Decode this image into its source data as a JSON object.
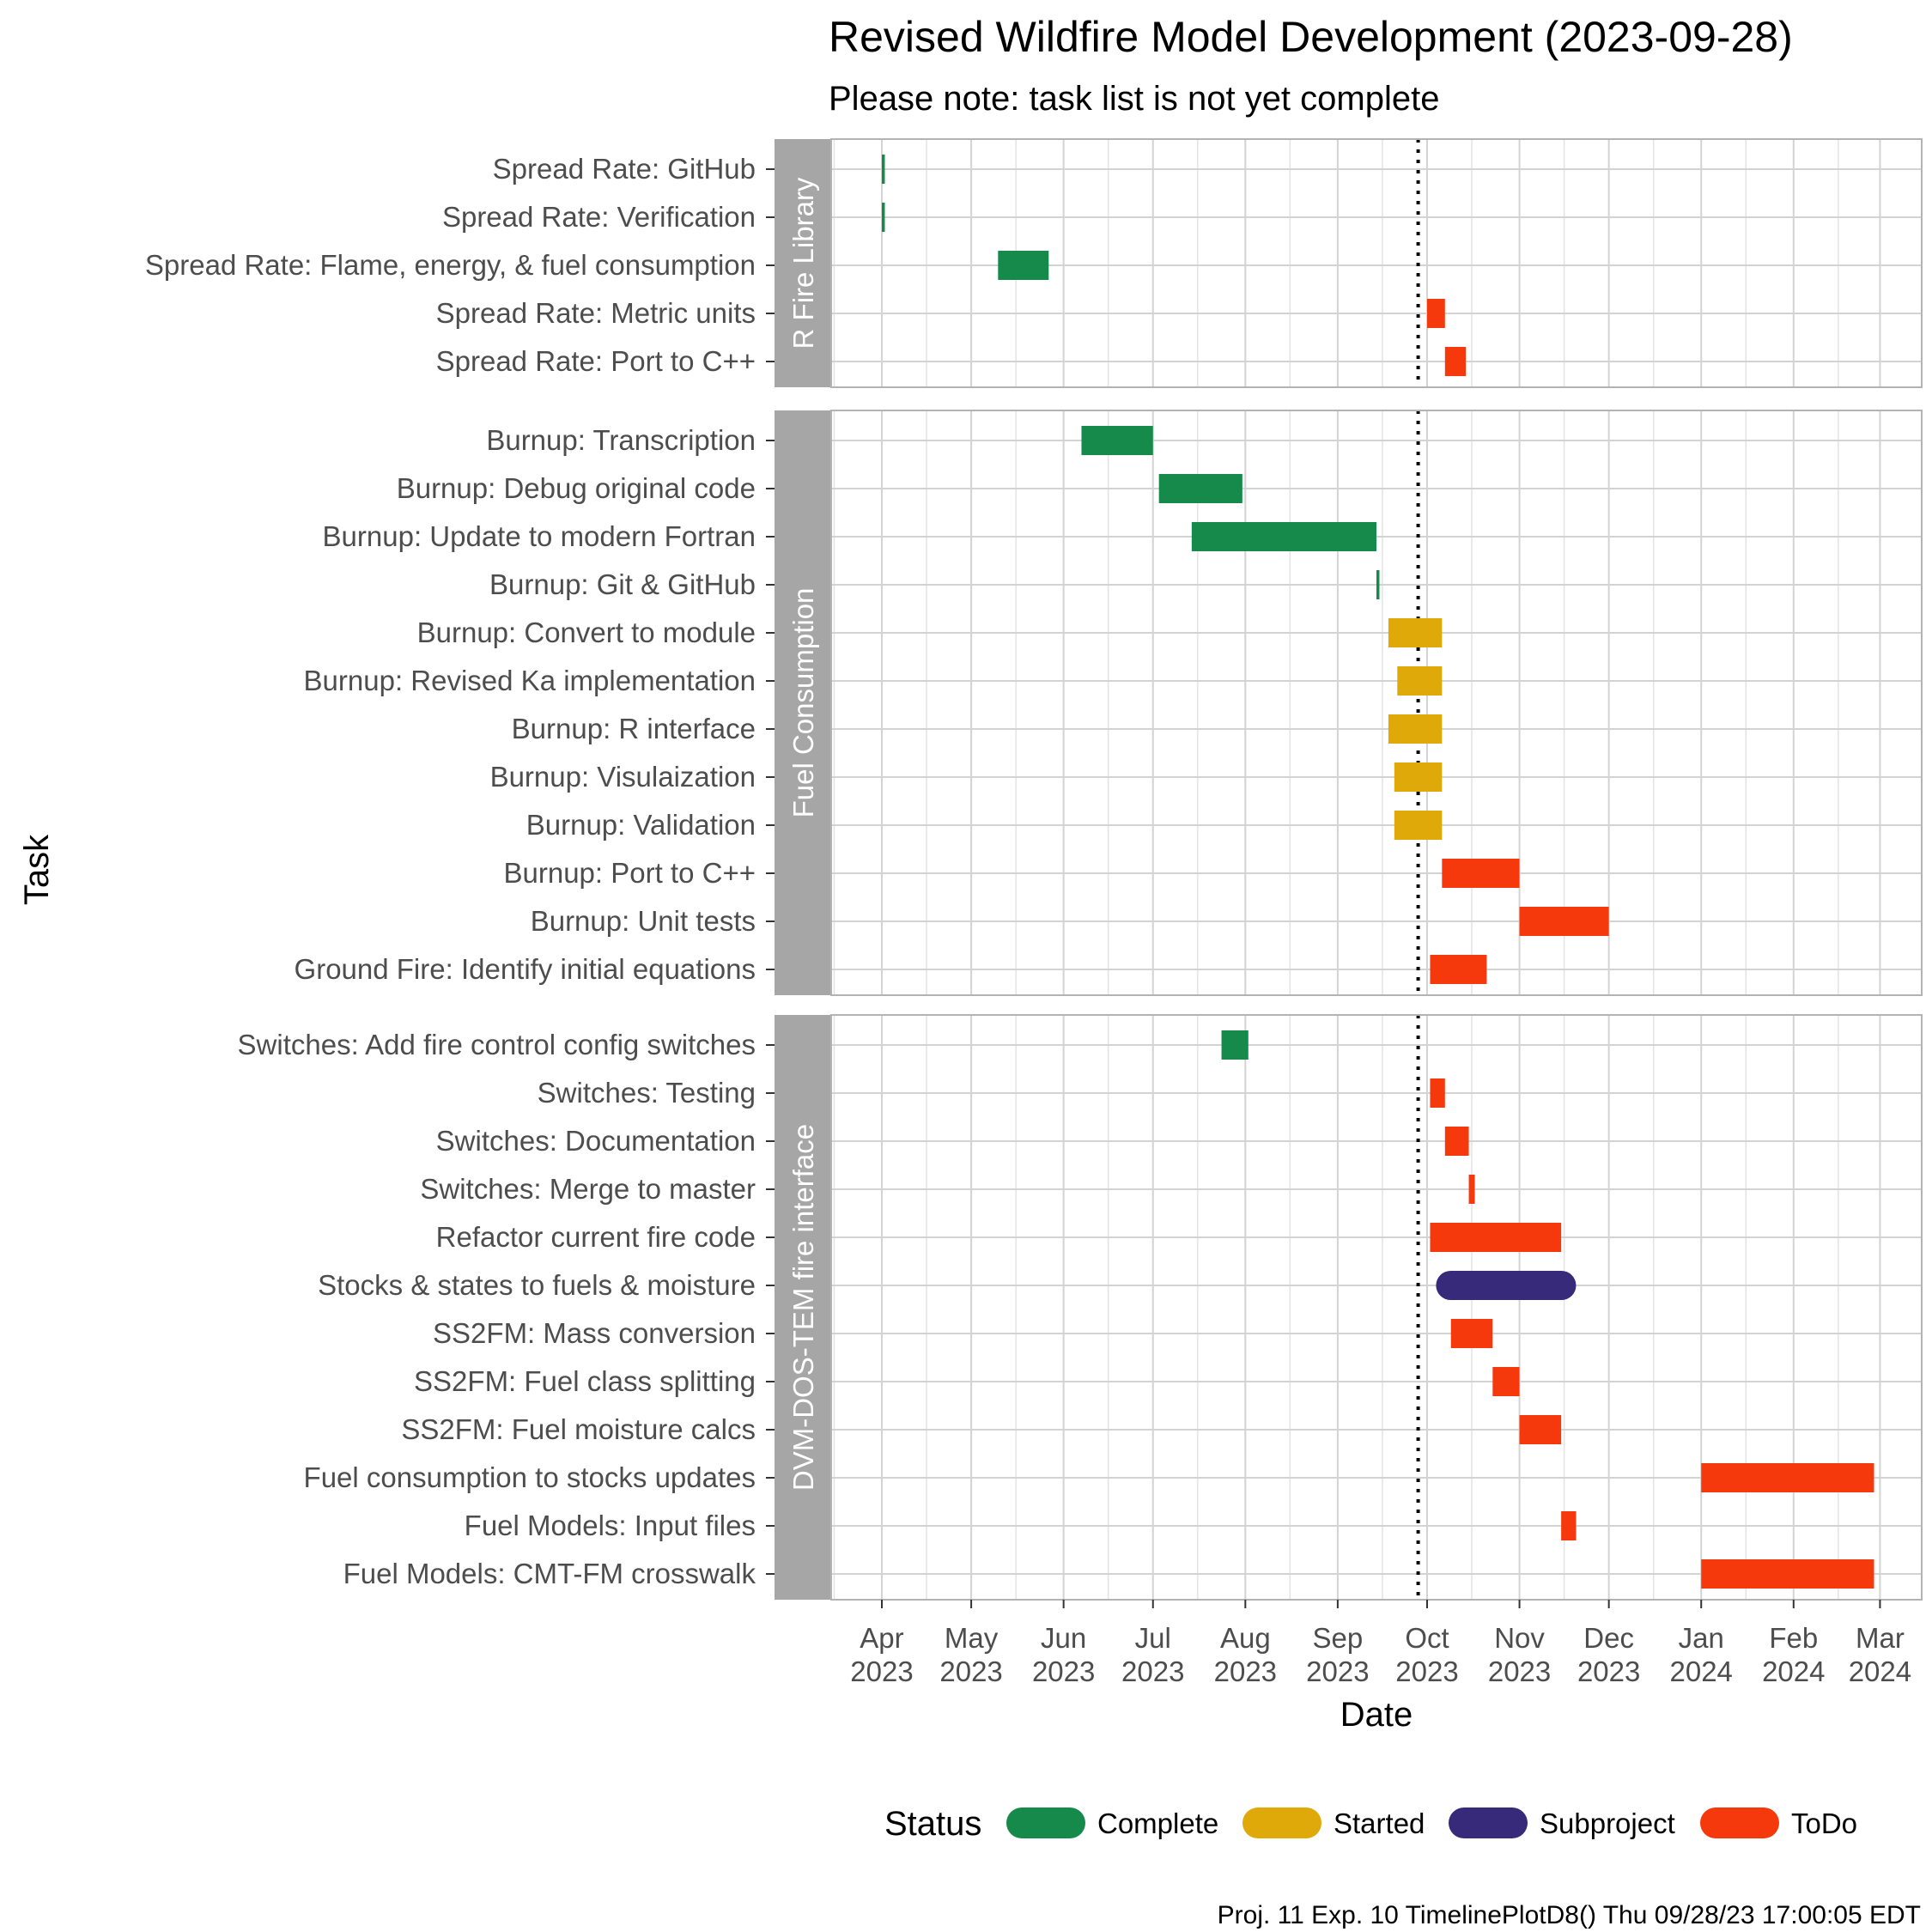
{
  "chart_data": {
    "type": "gantt",
    "title": "Revised Wildfire Model Development (2023-09-28)",
    "subtitle": "Please note: task list is not yet complete",
    "xlabel": "Date",
    "ylabel": "Task",
    "footer": "Proj. 11 Exp. 10 TimelinePlotD8() Thu 09/28/23 17:00:05 EDT",
    "today": "2023-09-28",
    "xlim": [
      "2023-03-15",
      "2024-03-15"
    ],
    "grid": true,
    "legend": {
      "title": "Status",
      "position": "bottom",
      "items": [
        {
          "label": "Complete",
          "color": "#168a4b"
        },
        {
          "label": "Started",
          "color": "#e0a90a"
        },
        {
          "label": "Subproject",
          "color": "#372a7b"
        },
        {
          "label": "ToDo",
          "color": "#f5390d"
        }
      ]
    },
    "x_ticks": [
      {
        "date": "2023-04-01",
        "month": "Apr",
        "year": "2023"
      },
      {
        "date": "2023-05-01",
        "month": "May",
        "year": "2023"
      },
      {
        "date": "2023-06-01",
        "month": "Jun",
        "year": "2023"
      },
      {
        "date": "2023-07-01",
        "month": "Jul",
        "year": "2023"
      },
      {
        "date": "2023-08-01",
        "month": "Aug",
        "year": "2023"
      },
      {
        "date": "2023-09-01",
        "month": "Sep",
        "year": "2023"
      },
      {
        "date": "2023-10-01",
        "month": "Oct",
        "year": "2023"
      },
      {
        "date": "2023-11-01",
        "month": "Nov",
        "year": "2023"
      },
      {
        "date": "2023-12-01",
        "month": "Dec",
        "year": "2023"
      },
      {
        "date": "2024-01-01",
        "month": "Jan",
        "year": "2024"
      },
      {
        "date": "2024-02-01",
        "month": "Feb",
        "year": "2024"
      },
      {
        "date": "2024-03-01",
        "month": "Mar",
        "year": "2024"
      }
    ],
    "panels": [
      {
        "name": "R Fire Library",
        "tasks": [
          {
            "task": "Spread Rate: GitHub",
            "start": "2023-04-01",
            "end": "2023-04-02",
            "status": "Complete"
          },
          {
            "task": "Spread Rate: Verification",
            "start": "2023-04-01",
            "end": "2023-04-02",
            "status": "Complete"
          },
          {
            "task": "Spread Rate: Flame, energy, & fuel consumption",
            "start": "2023-05-10",
            "end": "2023-05-27",
            "status": "Complete"
          },
          {
            "task": "Spread Rate: Metric units",
            "start": "2023-10-01",
            "end": "2023-10-07",
            "status": "ToDo"
          },
          {
            "task": "Spread Rate: Port to C++",
            "start": "2023-10-07",
            "end": "2023-10-14",
            "status": "ToDo"
          }
        ]
      },
      {
        "name": "Fuel Consumption",
        "tasks": [
          {
            "task": "Burnup: Transcription",
            "start": "2023-06-07",
            "end": "2023-07-01",
            "status": "Complete"
          },
          {
            "task": "Burnup: Debug original code",
            "start": "2023-07-03",
            "end": "2023-07-31",
            "status": "Complete"
          },
          {
            "task": "Burnup: Update to modern Fortran",
            "start": "2023-07-14",
            "end": "2023-09-14",
            "status": "Complete"
          },
          {
            "task": "Burnup: Git & GitHub",
            "start": "2023-09-14",
            "end": "2023-09-15",
            "status": "Complete"
          },
          {
            "task": "Burnup: Convert to module",
            "start": "2023-09-18",
            "end": "2023-10-06",
            "status": "Started"
          },
          {
            "task": "Burnup: Revised Ka implementation",
            "start": "2023-09-21",
            "end": "2023-10-06",
            "status": "Started"
          },
          {
            "task": "Burnup: R interface",
            "start": "2023-09-18",
            "end": "2023-10-06",
            "status": "Started"
          },
          {
            "task": "Burnup: Visulaization",
            "start": "2023-09-20",
            "end": "2023-10-06",
            "status": "Started"
          },
          {
            "task": "Burnup: Validation",
            "start": "2023-09-20",
            "end": "2023-10-06",
            "status": "Started"
          },
          {
            "task": "Burnup: Port to C++",
            "start": "2023-10-06",
            "end": "2023-11-01",
            "status": "ToDo"
          },
          {
            "task": "Burnup: Unit tests",
            "start": "2023-11-01",
            "end": "2023-12-01",
            "status": "ToDo"
          },
          {
            "task": "Ground Fire: Identify initial equations",
            "start": "2023-10-02",
            "end": "2023-10-21",
            "status": "ToDo"
          }
        ]
      },
      {
        "name": "DVM-DOS-TEM fire interface",
        "tasks": [
          {
            "task": "Switches: Add fire control config switches",
            "start": "2023-07-24",
            "end": "2023-08-02",
            "status": "Complete"
          },
          {
            "task": "Switches: Testing",
            "start": "2023-10-02",
            "end": "2023-10-07",
            "status": "ToDo"
          },
          {
            "task": "Switches: Documentation",
            "start": "2023-10-07",
            "end": "2023-10-15",
            "status": "ToDo"
          },
          {
            "task": "Switches: Merge to master",
            "start": "2023-10-15",
            "end": "2023-10-17",
            "status": "ToDo"
          },
          {
            "task": "Refactor current fire code",
            "start": "2023-10-02",
            "end": "2023-11-15",
            "status": "ToDo"
          },
          {
            "task": "Stocks & states to fuels & moisture",
            "start": "2023-10-04",
            "end": "2023-11-20",
            "status": "Subproject"
          },
          {
            "task": "SS2FM: Mass conversion",
            "start": "2023-10-09",
            "end": "2023-10-23",
            "status": "ToDo"
          },
          {
            "task": "SS2FM: Fuel class splitting",
            "start": "2023-10-23",
            "end": "2023-11-01",
            "status": "ToDo"
          },
          {
            "task": "SS2FM: Fuel moisture calcs",
            "start": "2023-11-01",
            "end": "2023-11-15",
            "status": "ToDo"
          },
          {
            "task": "Fuel consumption to stocks updates",
            "start": "2024-01-01",
            "end": "2024-02-28",
            "status": "ToDo"
          },
          {
            "task": "Fuel Models: Input files",
            "start": "2023-11-15",
            "end": "2023-11-20",
            "status": "ToDo"
          },
          {
            "task": "Fuel Models: CMT-FM crosswalk",
            "start": "2024-01-01",
            "end": "2024-02-28",
            "status": "ToDo"
          }
        ]
      }
    ]
  }
}
